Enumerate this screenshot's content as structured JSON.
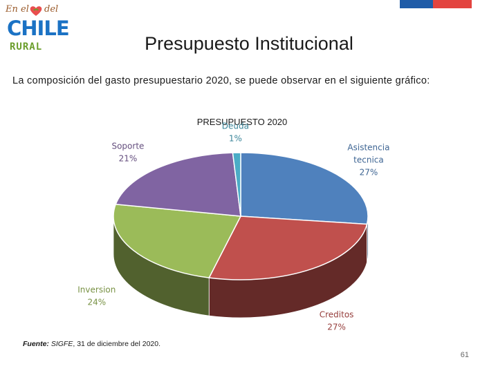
{
  "brand": {
    "logo_line1": "En el",
    "logo_line1b": "del",
    "logo_line2": "CHILE",
    "logo_line3": "RURAL"
  },
  "header": {
    "title": "Presupuesto Institucional"
  },
  "intro": "La composición del gasto presupuestario 2020, se puede observar en el siguiente gráfico:",
  "chart_data": {
    "type": "pie",
    "title": "PRESUPUESTO 2020",
    "slices": [
      {
        "label": "Asistencia tecnica",
        "lines": [
          "Asistencia",
          "tecnica"
        ],
        "value": 27,
        "pct": "27%",
        "color": "#4f81bd"
      },
      {
        "label": "Creditos",
        "lines": [
          "Creditos"
        ],
        "value": 27,
        "pct": "27%",
        "color": "#c0504d"
      },
      {
        "label": "Inversion",
        "lines": [
          "Inversion"
        ],
        "value": 24,
        "pct": "24%",
        "color": "#9bbb59"
      },
      {
        "label": "Soporte",
        "lines": [
          "Soporte"
        ],
        "value": 21,
        "pct": "21%",
        "color": "#8064a2"
      },
      {
        "label": "Deuda",
        "lines": [
          "Deuda"
        ],
        "value": 1,
        "pct": "1%",
        "color": "#4bacc6"
      }
    ]
  },
  "footer": {
    "source_label": "Fuente:",
    "source_italic": "SIGFE",
    "source_text": ", 31 de diciembre del 2020.",
    "page_number": "61"
  }
}
